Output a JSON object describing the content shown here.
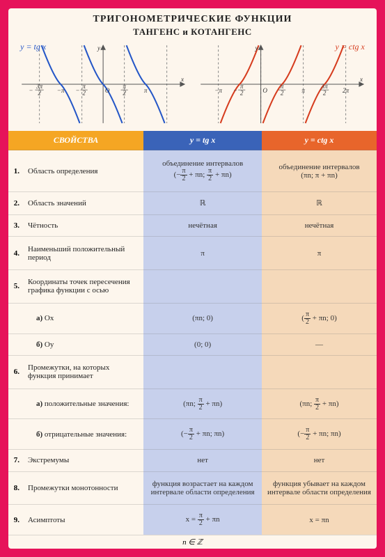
{
  "title": "ТРИГОНОМЕТРИЧЕСКИЕ ФУНКЦИИ",
  "subtitle": "ТАНГЕНС и КОТАНГЕНС",
  "graphs": {
    "tan": {
      "label": "y = tg x",
      "color": "#2456c7",
      "ticks": [
        "-3π/2",
        "-π",
        "-π/2",
        "O",
        "π/2",
        "π"
      ]
    },
    "cot": {
      "label": "y = ctg x",
      "color": "#d63c1e",
      "ticks": [
        "-π",
        "-π/2",
        "O",
        "π/2",
        "π",
        "3π/2",
        "2π"
      ]
    },
    "axis_color": "#555",
    "dash_color": "#888"
  },
  "headers": {
    "prop": "СВОЙСТВА",
    "tan": "y = tg x",
    "cot": "y = ctg x"
  },
  "rows": [
    {
      "n": "1.",
      "p": "Область определения",
      "t": "объединение интервалов\n(−π/2 + πn; π/2 + πn)",
      "c": "объединение интервалов\n(πn; π + πn)"
    },
    {
      "n": "2.",
      "p": "Область значений",
      "t": "ℝ",
      "c": "ℝ"
    },
    {
      "n": "3.",
      "p": "Чётность",
      "t": "нечётная",
      "c": "нечётная"
    },
    {
      "n": "4.",
      "p": "Наименьший положительный период",
      "t": "π",
      "c": "π"
    },
    {
      "n": "5.",
      "p": "Координаты точек пересечения графика функции с осью",
      "t": "",
      "c": ""
    },
    {
      "n": "",
      "p": "а) Ox",
      "sub": true,
      "t": "(πn; 0)",
      "c": "(π/2 + πn; 0)"
    },
    {
      "n": "",
      "p": "б) Oy",
      "sub": true,
      "t": "(0; 0)",
      "c": "—"
    },
    {
      "n": "6.",
      "p": "Промежутки, на которых функция принимает",
      "t": "",
      "c": ""
    },
    {
      "n": "",
      "p": "а) положительные значения:",
      "sub": true,
      "t": "(πn; π/2 + πn)",
      "c": "(πn; π/2 + πn)"
    },
    {
      "n": "",
      "p": "б) отрицательные значения:",
      "sub": true,
      "t": "(−π/2 + πn; πn)",
      "c": "(−π/2 + πn; πn)"
    },
    {
      "n": "7.",
      "p": "Экстремумы",
      "t": "нет",
      "c": "нет"
    },
    {
      "n": "8.",
      "p": "Промежутки монотонности",
      "t": "функция возрастает на каждом интервале области определения",
      "c": "функция убывает на каждом интервале области определения"
    },
    {
      "n": "9.",
      "p": "Асимптоты",
      "t": "x = π/2 + πn",
      "c": "x = πn"
    }
  ],
  "footer": "n ∈ ℤ",
  "colors": {
    "page_bg": "#e6135a",
    "card_bg": "#fdf6ed",
    "header_yellow": "#f5a623",
    "header_blue": "#3a63b8",
    "header_orange": "#e8652b",
    "cell_blue": "#c7d0ec",
    "cell_orange": "#f5d9ba"
  }
}
